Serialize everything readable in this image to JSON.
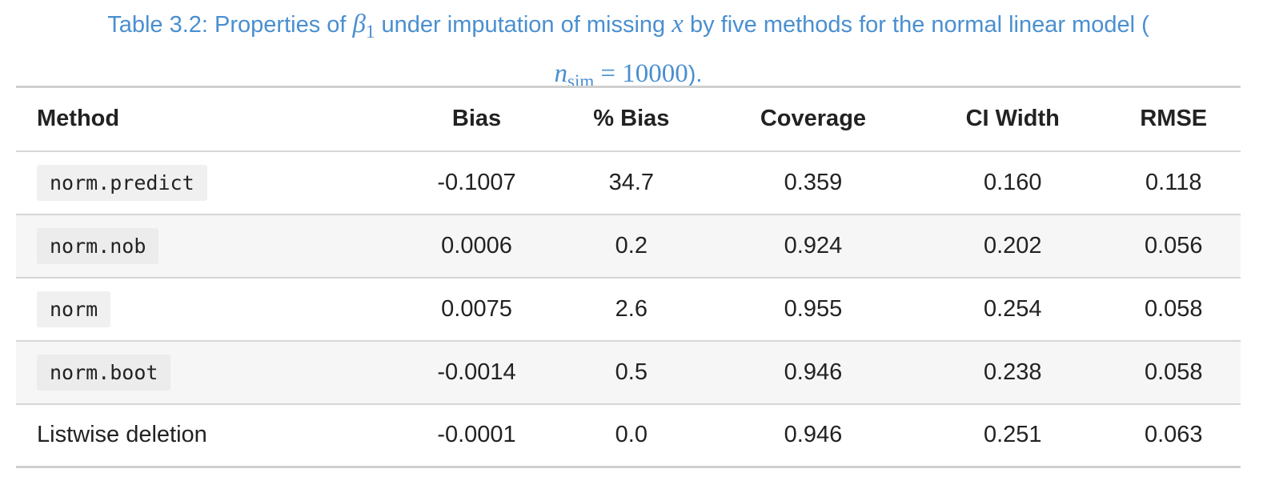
{
  "caption": {
    "prefix": "Table 3.2: Properties of",
    "beta_symbol": "β",
    "beta_sub": "1",
    "middle": "under imputation of missing",
    "x_symbol": "x",
    "suffix": "by five methods for the normal linear model (",
    "n_symbol": "n",
    "n_sub": "sim",
    "equals_value": "= 10000",
    "close": ")."
  },
  "table": {
    "headers": [
      "Method",
      "Bias",
      "% Bias",
      "Coverage",
      "CI Width",
      "RMSE"
    ],
    "rows": [
      {
        "method": "norm.predict",
        "bias": "-0.1007",
        "pct_bias": "34.7",
        "coverage": "0.359",
        "ci_width": "0.160",
        "rmse": "0.118"
      },
      {
        "method": "norm.nob",
        "bias": "0.0006",
        "pct_bias": "0.2",
        "coverage": "0.924",
        "ci_width": "0.202",
        "rmse": "0.056"
      },
      {
        "method": "norm",
        "bias": "0.0075",
        "pct_bias": "2.6",
        "coverage": "0.955",
        "ci_width": "0.254",
        "rmse": "0.058"
      },
      {
        "method": "norm.boot",
        "bias": "-0.0014",
        "pct_bias": "0.5",
        "coverage": "0.946",
        "ci_width": "0.238",
        "rmse": "0.058"
      },
      {
        "method": "Listwise deletion",
        "bias": "-0.0001",
        "pct_bias": "0.0",
        "coverage": "0.946",
        "ci_width": "0.251",
        "rmse": "0.063"
      }
    ]
  },
  "colors": {
    "caption_text": "#4a8fd0",
    "alt_row_bg": "#f6f6f6",
    "rule": "#cfcfcf"
  }
}
